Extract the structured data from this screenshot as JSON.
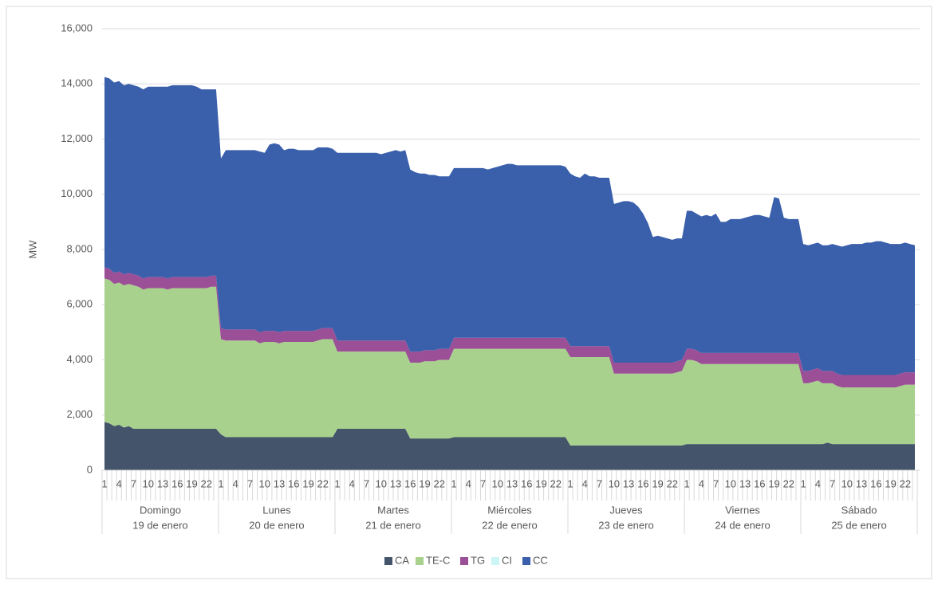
{
  "chart_data": {
    "type": "stacked-area",
    "y_label": "MW",
    "ylim": [
      0,
      16000
    ],
    "yticks": [
      0,
      {
        "value": 2000,
        "label": "2,000"
      },
      {
        "value": 4000,
        "label": "4,000"
      },
      {
        "value": 6000,
        "label": "6,000"
      },
      {
        "value": 8000,
        "label": "8,000"
      },
      {
        "value": 10000,
        "label": "10,000"
      },
      {
        "value": 12000,
        "label": "12,000"
      },
      {
        "value": 14000,
        "label": "14,000"
      },
      {
        "value": 16000,
        "label": "16,000"
      }
    ],
    "grid": true,
    "legend": "bottom",
    "categories": [
      "1",
      null,
      null,
      "4",
      null,
      null,
      "7",
      null,
      null,
      "10",
      null,
      null,
      "13",
      null,
      null,
      "16",
      null,
      null,
      "19",
      null,
      null,
      "22",
      null,
      null,
      "1",
      null,
      null,
      "4",
      null,
      null,
      "7",
      null,
      null,
      "10",
      null,
      null,
      "13",
      null,
      null,
      "16",
      null,
      null,
      "19",
      null,
      null,
      "22",
      null,
      null,
      "1",
      null,
      null,
      "4",
      null,
      null,
      "7",
      null,
      null,
      "10",
      null,
      null,
      "13",
      null,
      null,
      "16",
      null,
      null,
      "19",
      null,
      null,
      "22",
      null,
      null,
      "1",
      null,
      null,
      "4",
      null,
      null,
      "7",
      null,
      null,
      "10",
      null,
      null,
      "13",
      null,
      null,
      "16",
      null,
      null,
      "19",
      null,
      null,
      "22",
      null,
      null,
      "1",
      null,
      null,
      "4",
      null,
      null,
      "7",
      null,
      null,
      "10",
      null,
      null,
      "13",
      null,
      null,
      "16",
      null,
      null,
      "19",
      null,
      null,
      "22",
      null,
      null,
      "1",
      null,
      null,
      "4",
      null,
      null,
      "7",
      null,
      null,
      "10",
      null,
      null,
      "13",
      null,
      null,
      "16",
      null,
      null,
      "19",
      null,
      null,
      "22",
      null,
      null,
      "1",
      null,
      null,
      "4",
      null,
      null,
      "7",
      null,
      null,
      "10",
      null,
      null,
      "13",
      null,
      null,
      "16",
      null,
      null,
      "19",
      null,
      null,
      "22",
      null,
      null
    ],
    "groups": [
      {
        "name": "Domingo",
        "date": "19 de enero"
      },
      {
        "name": "Lunes",
        "date": "20 de enero"
      },
      {
        "name": "Martes",
        "date": "21 de enero"
      },
      {
        "name": "Miércoles",
        "date": "22 de enero"
      },
      {
        "name": "Jueves",
        "date": "23 de enero"
      },
      {
        "name": "Viernes",
        "date": "24 de enero"
      },
      {
        "name": "Sábado",
        "date": "25 de enero"
      }
    ],
    "series": [
      {
        "name": "CA",
        "color": "#44546a",
        "values": [
          1750,
          1700,
          1600,
          1650,
          1550,
          1600,
          1500,
          1500,
          1500,
          1500,
          1500,
          1500,
          1500,
          1500,
          1500,
          1500,
          1500,
          1500,
          1500,
          1500,
          1500,
          1500,
          1500,
          1500,
          1300,
          1200,
          1200,
          1200,
          1200,
          1200,
          1200,
          1200,
          1200,
          1200,
          1200,
          1200,
          1200,
          1200,
          1200,
          1200,
          1200,
          1200,
          1200,
          1200,
          1200,
          1200,
          1200,
          1200,
          1500,
          1500,
          1500,
          1500,
          1500,
          1500,
          1500,
          1500,
          1500,
          1500,
          1500,
          1500,
          1500,
          1500,
          1500,
          1150,
          1150,
          1150,
          1150,
          1150,
          1150,
          1150,
          1150,
          1150,
          1200,
          1200,
          1200,
          1200,
          1200,
          1200,
          1200,
          1200,
          1200,
          1200,
          1200,
          1200,
          1200,
          1200,
          1200,
          1200,
          1200,
          1200,
          1200,
          1200,
          1200,
          1200,
          1200,
          1200,
          900,
          900,
          900,
          900,
          900,
          900,
          900,
          900,
          900,
          900,
          900,
          900,
          900,
          900,
          900,
          900,
          900,
          900,
          900,
          900,
          900,
          900,
          900,
          900,
          950,
          950,
          950,
          950,
          950,
          950,
          950,
          950,
          950,
          950,
          950,
          950,
          950,
          950,
          950,
          950,
          950,
          950,
          950,
          950,
          950,
          950,
          950,
          950,
          950,
          950,
          950,
          950,
          950,
          1000,
          950,
          950,
          950,
          950,
          950,
          950,
          950,
          950,
          950,
          950,
          950,
          950,
          950,
          950,
          950,
          950,
          950,
          950
        ]
      },
      {
        "name": "TE-C",
        "color": "#a9d18e",
        "values": [
          5200,
          5200,
          5150,
          5150,
          5150,
          5150,
          5200,
          5150,
          5050,
          5100,
          5100,
          5100,
          5100,
          5050,
          5100,
          5100,
          5100,
          5100,
          5100,
          5100,
          5100,
          5100,
          5150,
          5150,
          3450,
          3500,
          3500,
          3500,
          3500,
          3500,
          3500,
          3500,
          3400,
          3450,
          3450,
          3450,
          3400,
          3450,
          3450,
          3450,
          3450,
          3450,
          3450,
          3450,
          3500,
          3550,
          3550,
          3550,
          2800,
          2800,
          2800,
          2800,
          2800,
          2800,
          2800,
          2800,
          2800,
          2800,
          2800,
          2800,
          2800,
          2800,
          2800,
          2750,
          2750,
          2750,
          2800,
          2800,
          2800,
          2850,
          2850,
          2850,
          3200,
          3200,
          3200,
          3200,
          3200,
          3200,
          3200,
          3200,
          3200,
          3200,
          3200,
          3200,
          3200,
          3200,
          3200,
          3200,
          3200,
          3200,
          3200,
          3200,
          3200,
          3200,
          3200,
          3200,
          3200,
          3200,
          3200,
          3200,
          3200,
          3200,
          3200,
          3200,
          3200,
          2600,
          2600,
          2600,
          2600,
          2600,
          2600,
          2600,
          2600,
          2600,
          2600,
          2600,
          2600,
          2600,
          2650,
          2700,
          3050,
          3050,
          3000,
          2900,
          2900,
          2900,
          2900,
          2900,
          2900,
          2900,
          2900,
          2900,
          2900,
          2900,
          2900,
          2900,
          2900,
          2900,
          2900,
          2900,
          2900,
          2900,
          2900,
          2900,
          2200,
          2200,
          2250,
          2300,
          2200,
          2150,
          2200,
          2100,
          2050,
          2050,
          2050,
          2050,
          2050,
          2050,
          2050,
          2050,
          2050,
          2050,
          2050,
          2050,
          2100,
          2150,
          2150,
          2150
        ]
      },
      {
        "name": "TG",
        "color": "#9b4f96",
        "values": [
          400,
          400,
          400,
          400,
          400,
          400,
          400,
          400,
          400,
          400,
          400,
          400,
          400,
          400,
          400,
          400,
          400,
          400,
          400,
          400,
          400,
          400,
          400,
          400,
          400,
          400,
          400,
          400,
          400,
          400,
          400,
          400,
          400,
          400,
          400,
          400,
          400,
          400,
          400,
          400,
          400,
          400,
          400,
          400,
          400,
          400,
          400,
          400,
          400,
          400,
          400,
          400,
          400,
          400,
          400,
          400,
          400,
          400,
          400,
          400,
          400,
          400,
          400,
          400,
          400,
          400,
          400,
          400,
          400,
          400,
          400,
          400,
          400,
          400,
          400,
          400,
          400,
          400,
          400,
          400,
          400,
          400,
          400,
          400,
          400,
          400,
          400,
          400,
          400,
          400,
          400,
          400,
          400,
          400,
          400,
          400,
          400,
          400,
          400,
          400,
          400,
          400,
          400,
          400,
          400,
          400,
          400,
          400,
          400,
          400,
          400,
          400,
          400,
          400,
          400,
          400,
          400,
          400,
          400,
          400,
          400,
          400,
          400,
          400,
          400,
          400,
          400,
          400,
          400,
          400,
          400,
          400,
          400,
          400,
          400,
          400,
          400,
          400,
          400,
          400,
          400,
          400,
          400,
          400,
          450,
          450,
          450,
          450,
          450,
          450,
          450,
          450,
          450,
          450,
          450,
          450,
          450,
          450,
          450,
          450,
          450,
          450,
          450,
          450,
          450,
          450,
          450,
          450
        ]
      },
      {
        "name": "CI",
        "color": "#ccf5f5",
        "values": [
          0,
          0,
          0,
          0,
          0,
          0,
          0,
          0,
          0,
          0,
          0,
          0,
          0,
          0,
          0,
          0,
          0,
          0,
          0,
          0,
          0,
          0,
          0,
          0,
          0,
          0,
          0,
          0,
          0,
          0,
          0,
          0,
          0,
          0,
          0,
          0,
          0,
          0,
          0,
          0,
          0,
          0,
          0,
          0,
          0,
          0,
          0,
          0,
          0,
          0,
          0,
          0,
          0,
          0,
          0,
          0,
          0,
          0,
          0,
          0,
          0,
          0,
          0,
          0,
          0,
          0,
          0,
          0,
          0,
          0,
          0,
          0,
          0,
          0,
          0,
          0,
          0,
          0,
          0,
          0,
          0,
          0,
          0,
          0,
          0,
          0,
          0,
          0,
          0,
          0,
          0,
          0,
          0,
          0,
          0,
          0,
          0,
          0,
          0,
          0,
          0,
          0,
          0,
          0,
          0,
          0,
          0,
          0,
          0,
          0,
          0,
          0,
          0,
          0,
          0,
          0,
          0,
          0,
          0,
          0,
          0,
          0,
          0,
          0,
          0,
          0,
          0,
          0,
          0,
          0,
          0,
          0,
          0,
          0,
          0,
          0,
          0,
          0,
          0,
          0,
          0,
          0,
          0,
          0,
          0,
          0,
          0,
          0,
          0,
          0,
          0,
          0,
          0,
          0,
          0,
          0,
          0,
          0,
          0,
          0,
          0,
          0,
          0,
          0,
          0,
          0,
          0,
          0
        ]
      },
      {
        "name": "CC",
        "color": "#3a5fab",
        "values": [
          6900,
          6900,
          6900,
          6900,
          6850,
          6850,
          6850,
          6850,
          6850,
          6900,
          6900,
          6900,
          6900,
          6950,
          6950,
          6950,
          6950,
          6950,
          6950,
          6900,
          6800,
          6800,
          6750,
          6750,
          6150,
          6500,
          6500,
          6500,
          6500,
          6500,
          6500,
          6500,
          6550,
          6450,
          6750,
          6800,
          6800,
          6550,
          6600,
          6600,
          6550,
          6550,
          6550,
          6550,
          6600,
          6550,
          6550,
          6500,
          6800,
          6800,
          6800,
          6800,
          6800,
          6800,
          6800,
          6800,
          6800,
          6750,
          6800,
          6850,
          6900,
          6850,
          6900,
          6600,
          6500,
          6450,
          6400,
          6350,
          6350,
          6250,
          6250,
          6250,
          6150,
          6150,
          6150,
          6150,
          6150,
          6150,
          6150,
          6100,
          6150,
          6200,
          6250,
          6300,
          6300,
          6250,
          6250,
          6250,
          6250,
          6250,
          6250,
          6250,
          6250,
          6250,
          6250,
          6200,
          6250,
          6150,
          6100,
          6250,
          6150,
          6150,
          6100,
          6100,
          6100,
          5750,
          5800,
          5850,
          5850,
          5800,
          5650,
          5400,
          5050,
          4550,
          4600,
          4550,
          4500,
          4450,
          4450,
          4400,
          5000,
          5000,
          4950,
          4950,
          5000,
          4950,
          5050,
          4750,
          4750,
          4850,
          4850,
          4850,
          4900,
          4950,
          5000,
          5000,
          4950,
          4900,
          5650,
          5600,
          4900,
          4850,
          4850,
          4850,
          4600,
          4550,
          4550,
          4550,
          4550,
          4550,
          4600,
          4650,
          4650,
          4700,
          4750,
          4750,
          4750,
          4800,
          4800,
          4850,
          4850,
          4800,
          4750,
          4750,
          4700,
          4700,
          4650,
          4600
        ]
      }
    ]
  }
}
